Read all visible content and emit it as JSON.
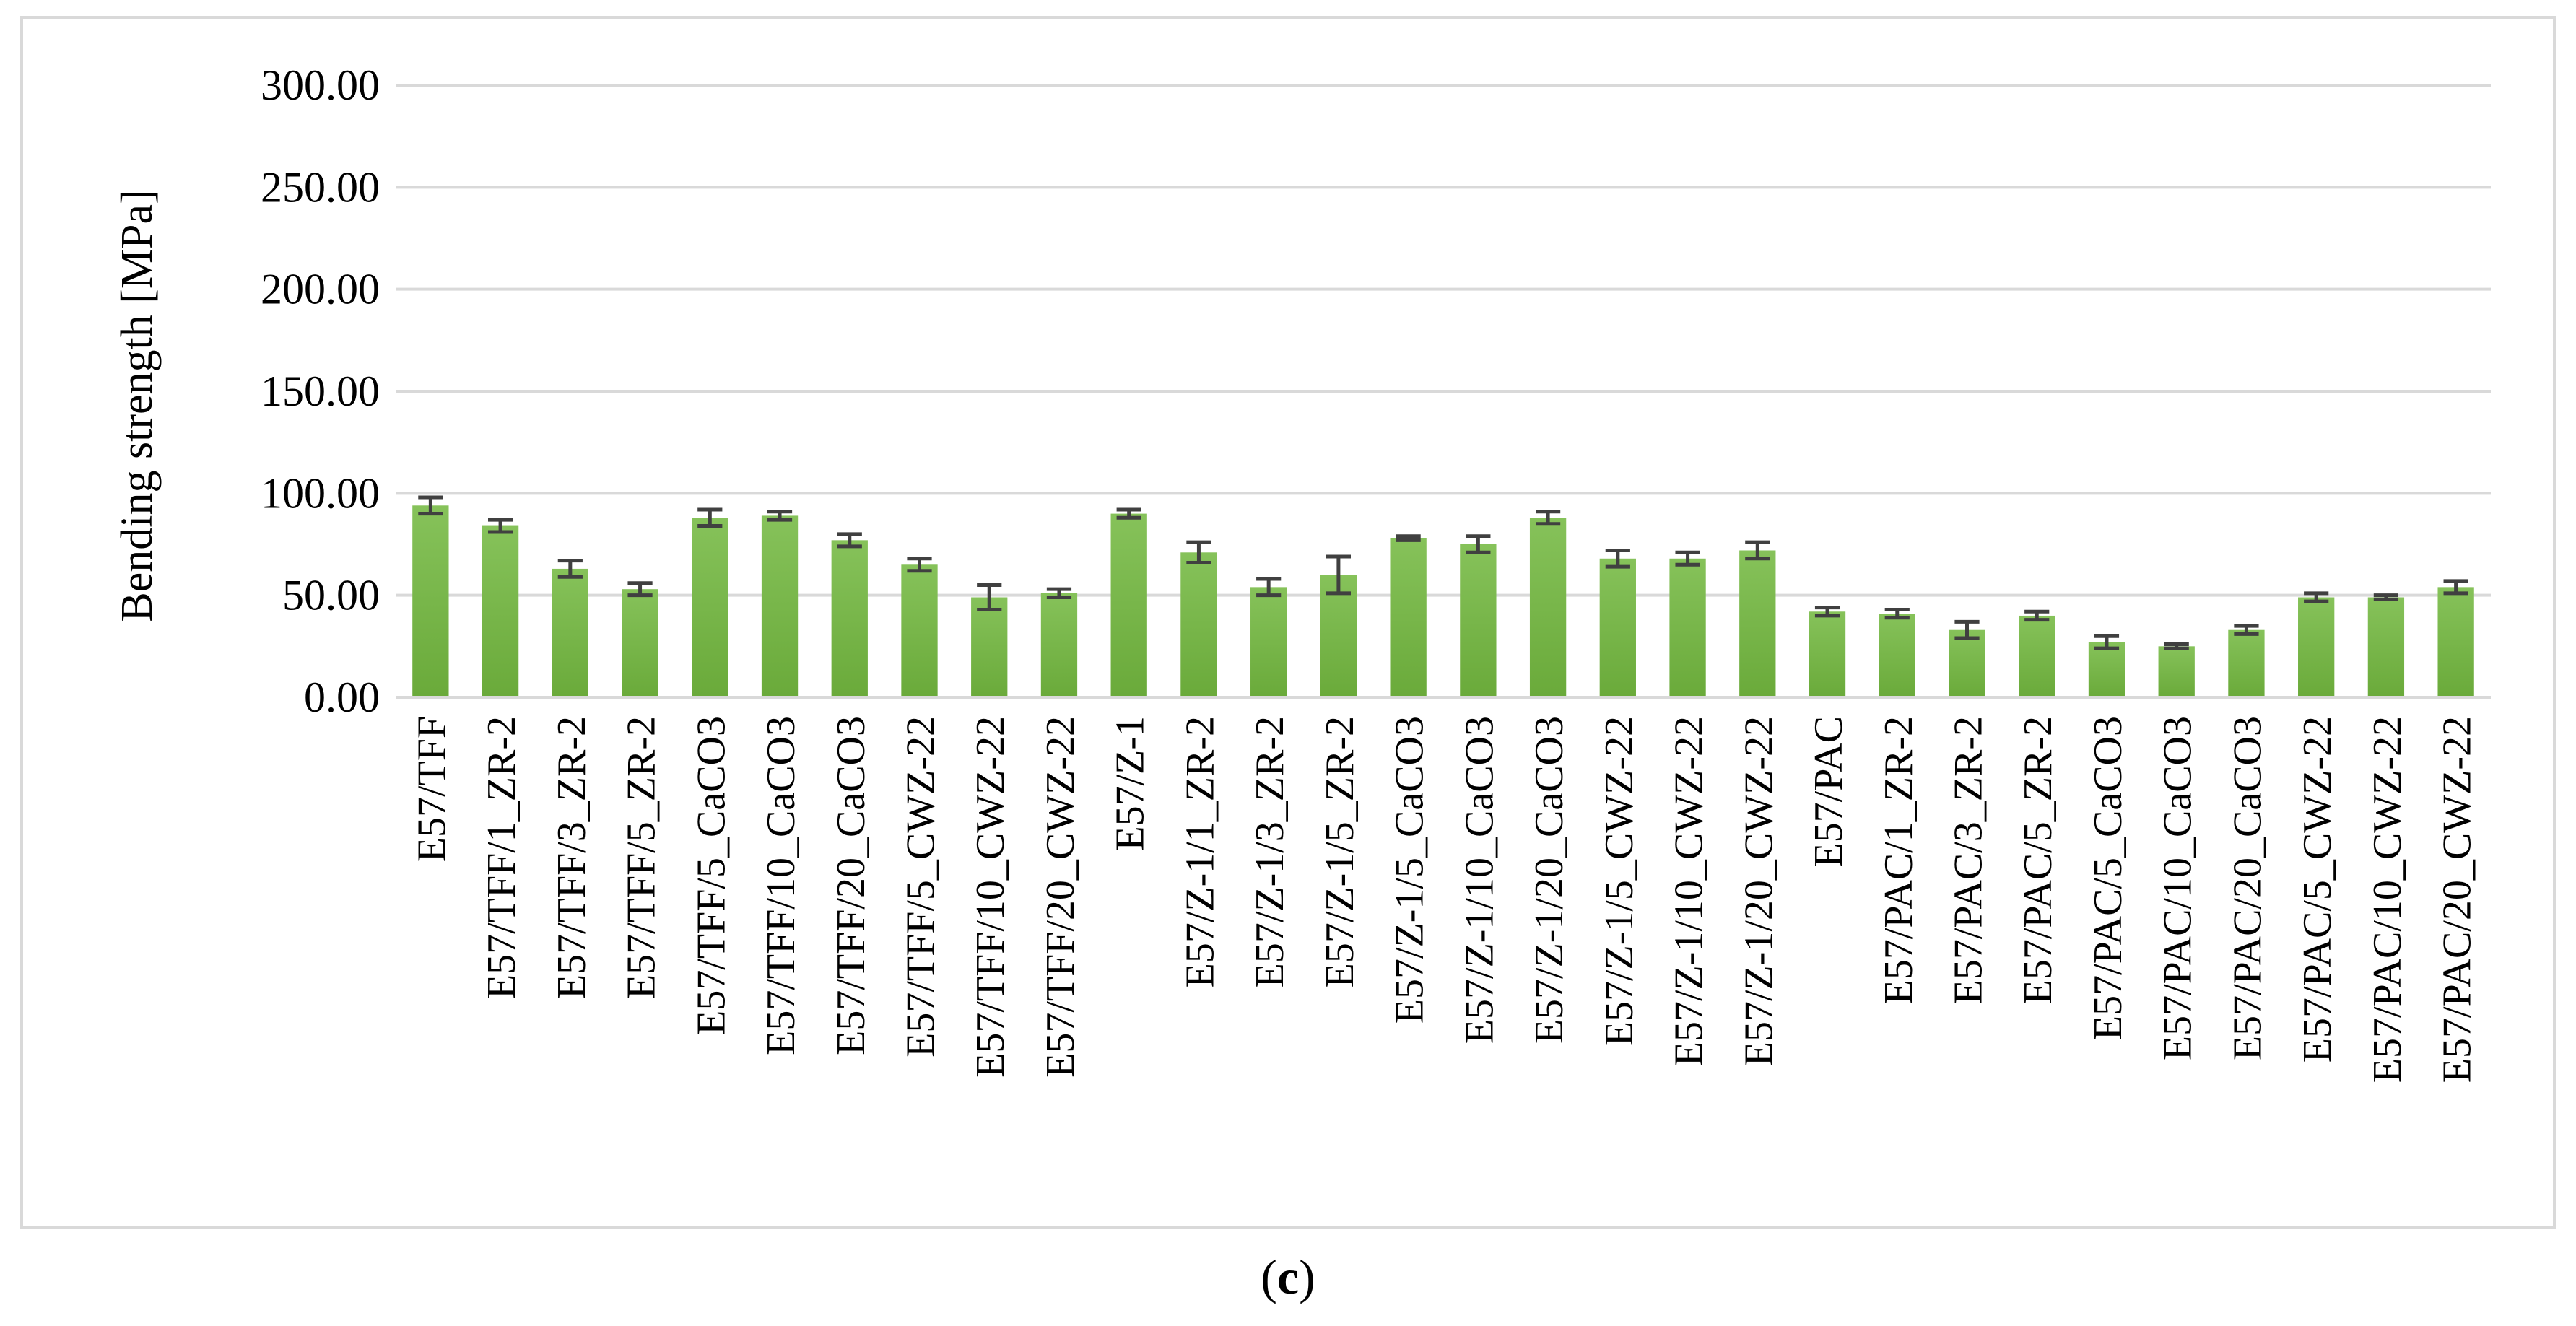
{
  "chart_data": {
    "type": "bar",
    "ylabel": "Bending strength [MPa]",
    "ylim": [
      0,
      300
    ],
    "yticks": [
      "0.00",
      "50.00",
      "100.00",
      "150.00",
      "200.00",
      "250.00",
      "300.00"
    ],
    "grid": true,
    "legend": "none",
    "bar_color": "#6aaa3a",
    "error_bar_color": "#404040",
    "categories": [
      "E57/TFF",
      "E57/TFF/1_ZR-2",
      "E57/TFF/3_ZR-2",
      "E57/TFF/5_ZR-2",
      "E57/TFF/5_CaCO3",
      "E57/TFF/10_CaCO3",
      "E57/TFF/20_CaCO3",
      "E57/TFF/5_CWZ-22",
      "E57/TFF/10_CWZ-22",
      "E57/TFF/20_CWZ-22",
      "E57/Z-1",
      "E57/Z-1/1_ZR-2",
      "E57/Z-1/3_ZR-2",
      "E57/Z-1/5_ZR-2",
      "E57/Z-1/5_CaCO3",
      "E57/Z-1/10_CaCO3",
      "E57/Z-1/20_CaCO3",
      "E57/Z-1/5_CWZ-22",
      "E57/Z-1/10_CWZ-22",
      "E57/Z-1/20_CWZ-22",
      "E57/PAC",
      "E57/PAC/1_ZR-2",
      "E57/PAC/3_ZR-2",
      "E57/PAC/5_ZR-2",
      "E57/PAC/5_CaCO3",
      "E57/PAC/10_CaCO3",
      "E57/PAC/20_CaCO3",
      "E57/PAC/5_CWZ-22",
      "E57/PAC/10_CWZ-22",
      "E57/PAC/20_CWZ-22"
    ],
    "values": [
      94,
      84,
      63,
      53,
      88,
      89,
      77,
      65,
      49,
      51,
      90,
      71,
      54,
      60,
      78,
      75,
      88,
      68,
      68,
      72,
      42,
      41,
      33,
      40,
      27,
      25,
      33,
      49,
      49,
      54
    ],
    "errors": [
      4,
      3,
      4,
      3,
      4,
      2,
      3,
      3,
      6,
      2,
      2,
      5,
      4,
      9,
      1,
      4,
      3,
      4,
      3,
      4,
      2,
      2,
      4,
      2,
      3,
      1,
      2,
      2,
      1,
      3
    ]
  },
  "caption": {
    "open": "(",
    "letter": "c",
    "close": ")"
  }
}
